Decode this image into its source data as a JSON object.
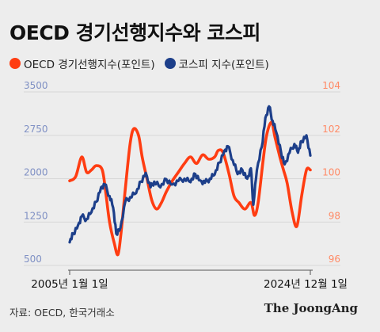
{
  "title": "OECD 경기선행지수와 코스피",
  "source": "자료: OECD, 한국거래소",
  "brand": "The JoongAng",
  "colors": {
    "oecd": "#ff3d12",
    "kospi": "#1d3f8a",
    "left_axis_text": "#7f90c4",
    "right_axis_text": "#ff8a66",
    "grid": "#d8d8d8"
  },
  "chart_data": {
    "type": "line",
    "x_start_label": "2005년 1월 1일",
    "x_end_label": "2024년 12월 1일",
    "y_left": {
      "ticks": [
        500,
        1250,
        2000,
        2750,
        3500
      ],
      "range": [
        500,
        3500
      ]
    },
    "y_right": {
      "ticks": [
        96,
        98,
        100,
        102,
        104
      ],
      "range": [
        96,
        104
      ]
    },
    "series": [
      {
        "name": "OECD 경기선행지수(포인트)",
        "axis": "right",
        "x": [
          2005.0,
          2005.5,
          2006.0,
          2006.4,
          2006.8,
          2007.2,
          2007.7,
          2008.0,
          2008.3,
          2008.7,
          2009.0,
          2009.25,
          2009.6,
          2010.0,
          2010.3,
          2010.7,
          2011.0,
          2011.4,
          2011.8,
          2012.2,
          2012.6,
          2013.0,
          2013.5,
          2014.0,
          2014.5,
          2015.0,
          2015.5,
          2016.0,
          2016.5,
          2017.0,
          2017.3,
          2017.7,
          2018.2,
          2018.6,
          2019.0,
          2019.5,
          2020.0,
          2020.3,
          2020.6,
          2021.0,
          2021.3,
          2021.7,
          2022.0,
          2022.4,
          2022.7,
          2023.0,
          2023.4,
          2023.8,
          2024.2,
          2024.6,
          2024.92
        ],
        "values": [
          99.9,
          100.1,
          101.0,
          100.3,
          100.4,
          100.6,
          100.4,
          99.3,
          98.0,
          97.0,
          96.5,
          97.5,
          99.5,
          101.6,
          102.3,
          102.0,
          101.0,
          100.0,
          99.0,
          98.6,
          98.9,
          99.4,
          99.9,
          100.3,
          100.7,
          101.0,
          100.7,
          101.1,
          100.9,
          101.0,
          101.3,
          101.2,
          100.2,
          99.2,
          98.9,
          98.6,
          98.9,
          98.3,
          98.9,
          100.8,
          102.0,
          102.6,
          101.9,
          101.0,
          100.4,
          99.8,
          98.5,
          97.8,
          99.2,
          100.4,
          100.4
        ]
      },
      {
        "name": "코스피 지수(포인트)",
        "axis": "left",
        "x": [
          2005.0,
          2005.3,
          2005.7,
          2006.0,
          2006.4,
          2006.8,
          2007.2,
          2007.6,
          2007.9,
          2008.3,
          2008.6,
          2008.85,
          2009.2,
          2009.6,
          2010.0,
          2010.5,
          2010.9,
          2011.3,
          2011.7,
          2012.0,
          2012.5,
          2013.0,
          2013.5,
          2014.0,
          2014.5,
          2015.0,
          2015.4,
          2015.8,
          2016.2,
          2016.6,
          2017.0,
          2017.4,
          2017.8,
          2018.1,
          2018.5,
          2018.9,
          2019.3,
          2019.7,
          2020.0,
          2020.2,
          2020.5,
          2020.9,
          2021.2,
          2021.5,
          2021.8,
          2022.1,
          2022.5,
          2022.8,
          2023.2,
          2023.6,
          2023.9,
          2024.2,
          2024.6,
          2024.92
        ],
        "values": [
          900,
          1050,
          1200,
          1350,
          1300,
          1420,
          1600,
          1850,
          1900,
          1700,
          1500,
          1050,
          1150,
          1600,
          1680,
          1750,
          1950,
          2100,
          1850,
          1950,
          1850,
          1990,
          1900,
          1960,
          2000,
          1940,
          2080,
          1970,
          1930,
          2000,
          2070,
          2280,
          2480,
          2560,
          2320,
          2080,
          2150,
          2000,
          2180,
          1550,
          2150,
          2550,
          3050,
          3250,
          3000,
          2800,
          2450,
          2250,
          2450,
          2600,
          2450,
          2650,
          2750,
          2400
        ]
      }
    ]
  }
}
